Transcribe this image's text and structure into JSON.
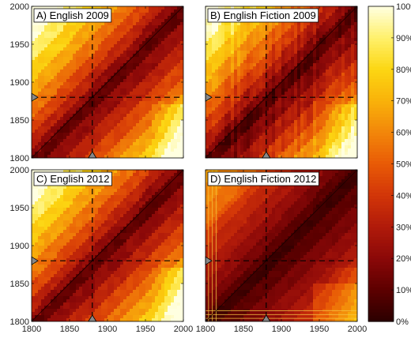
{
  "chart_data": [
    {
      "type": "heatmap",
      "title": "A) English 2009",
      "x_range": [
        1800,
        2000
      ],
      "y_range": [
        1800,
        2000
      ],
      "xticks": [
        "1800",
        "1850",
        "1900",
        "1950",
        "2000"
      ],
      "yticks": [
        "1800",
        "1850",
        "1900",
        "1950",
        "2000"
      ],
      "show_xticks": false,
      "show_yticks": true,
      "marker": {
        "x": 1880,
        "y": 1880
      },
      "texture": "smooth",
      "description": "Ratio matrix; dark along the diagonal, yellow-white toward the top-left and bottom-right corners."
    },
    {
      "type": "heatmap",
      "title": "B) English Fiction 2009",
      "x_range": [
        1800,
        2000
      ],
      "y_range": [
        1800,
        2000
      ],
      "xticks": [
        "1800",
        "1850",
        "1900",
        "1950",
        "2000"
      ],
      "yticks": [
        "1800",
        "1850",
        "1900",
        "1950",
        "2000"
      ],
      "show_xticks": false,
      "show_yticks": false,
      "marker": {
        "x": 1880,
        "y": 1880
      },
      "texture": "striped"
    },
    {
      "type": "heatmap",
      "title": "C) English 2012",
      "x_range": [
        1800,
        2000
      ],
      "y_range": [
        1800,
        2000
      ],
      "xticks": [
        "1800",
        "1850",
        "1900",
        "1950",
        "2000"
      ],
      "yticks": [
        "1800",
        "1850",
        "1900",
        "1950",
        "2000"
      ],
      "show_xticks": true,
      "show_yticks": true,
      "marker": {
        "x": 1880,
        "y": 1880
      },
      "texture": "smooth"
    },
    {
      "type": "heatmap",
      "title": "D) English Fiction 2012",
      "x_range": [
        1800,
        2000
      ],
      "y_range": [
        1800,
        2000
      ],
      "xticks": [
        "1800",
        "1850",
        "1900",
        "1950",
        "2000"
      ],
      "yticks": [
        "1800",
        "1850",
        "1900",
        "1950",
        "2000"
      ],
      "show_xticks": true,
      "show_yticks": false,
      "marker": {
        "x": 1880,
        "y": 1880
      },
      "texture": "dark-grid"
    }
  ],
  "colorbar": {
    "range": [
      0,
      100
    ],
    "unit": "%",
    "ticks": [
      "0%",
      "10%",
      "20%",
      "30%",
      "40%",
      "50%",
      "60%",
      "70%",
      "80%",
      "90%",
      "100%"
    ],
    "stops": [
      "#2a0000",
      "#5c0000",
      "#8a0808",
      "#b01a0a",
      "#d23508",
      "#e85a06",
      "#f2860a",
      "#f9b10a",
      "#fcd612",
      "#fff06a",
      "#ffffe0"
    ]
  }
}
